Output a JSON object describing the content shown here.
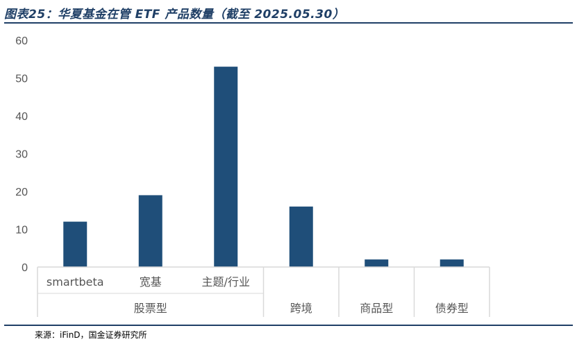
{
  "header": {
    "title": "图表25：华夏基金在管 ETF 产品数量（截至 2025.05.30）"
  },
  "footer": {
    "source": "来源：iFinD，国金证券研究所"
  },
  "colors": {
    "bar": "#1f4e79",
    "rule": "#1f3f66",
    "axis": "#d9d9d9",
    "text": "#555555"
  },
  "chart_data": {
    "type": "bar",
    "title": "华夏基金在管 ETF 产品数量（截至 2025.05.30）",
    "xlabel": "",
    "ylabel": "",
    "ylim": [
      0,
      60
    ],
    "yticks": [
      0,
      10,
      20,
      30,
      40,
      50,
      60
    ],
    "grid": false,
    "categories": [
      "smartbeta",
      "宽基",
      "主题/行业",
      "",
      "",
      ""
    ],
    "groups": [
      {
        "label": "股票型",
        "span": 3
      },
      {
        "label": "跨境",
        "span": 1
      },
      {
        "label": "商品型",
        "span": 1
      },
      {
        "label": "债券型",
        "span": 1
      }
    ],
    "values": [
      12,
      19,
      53,
      16,
      2,
      2
    ]
  }
}
